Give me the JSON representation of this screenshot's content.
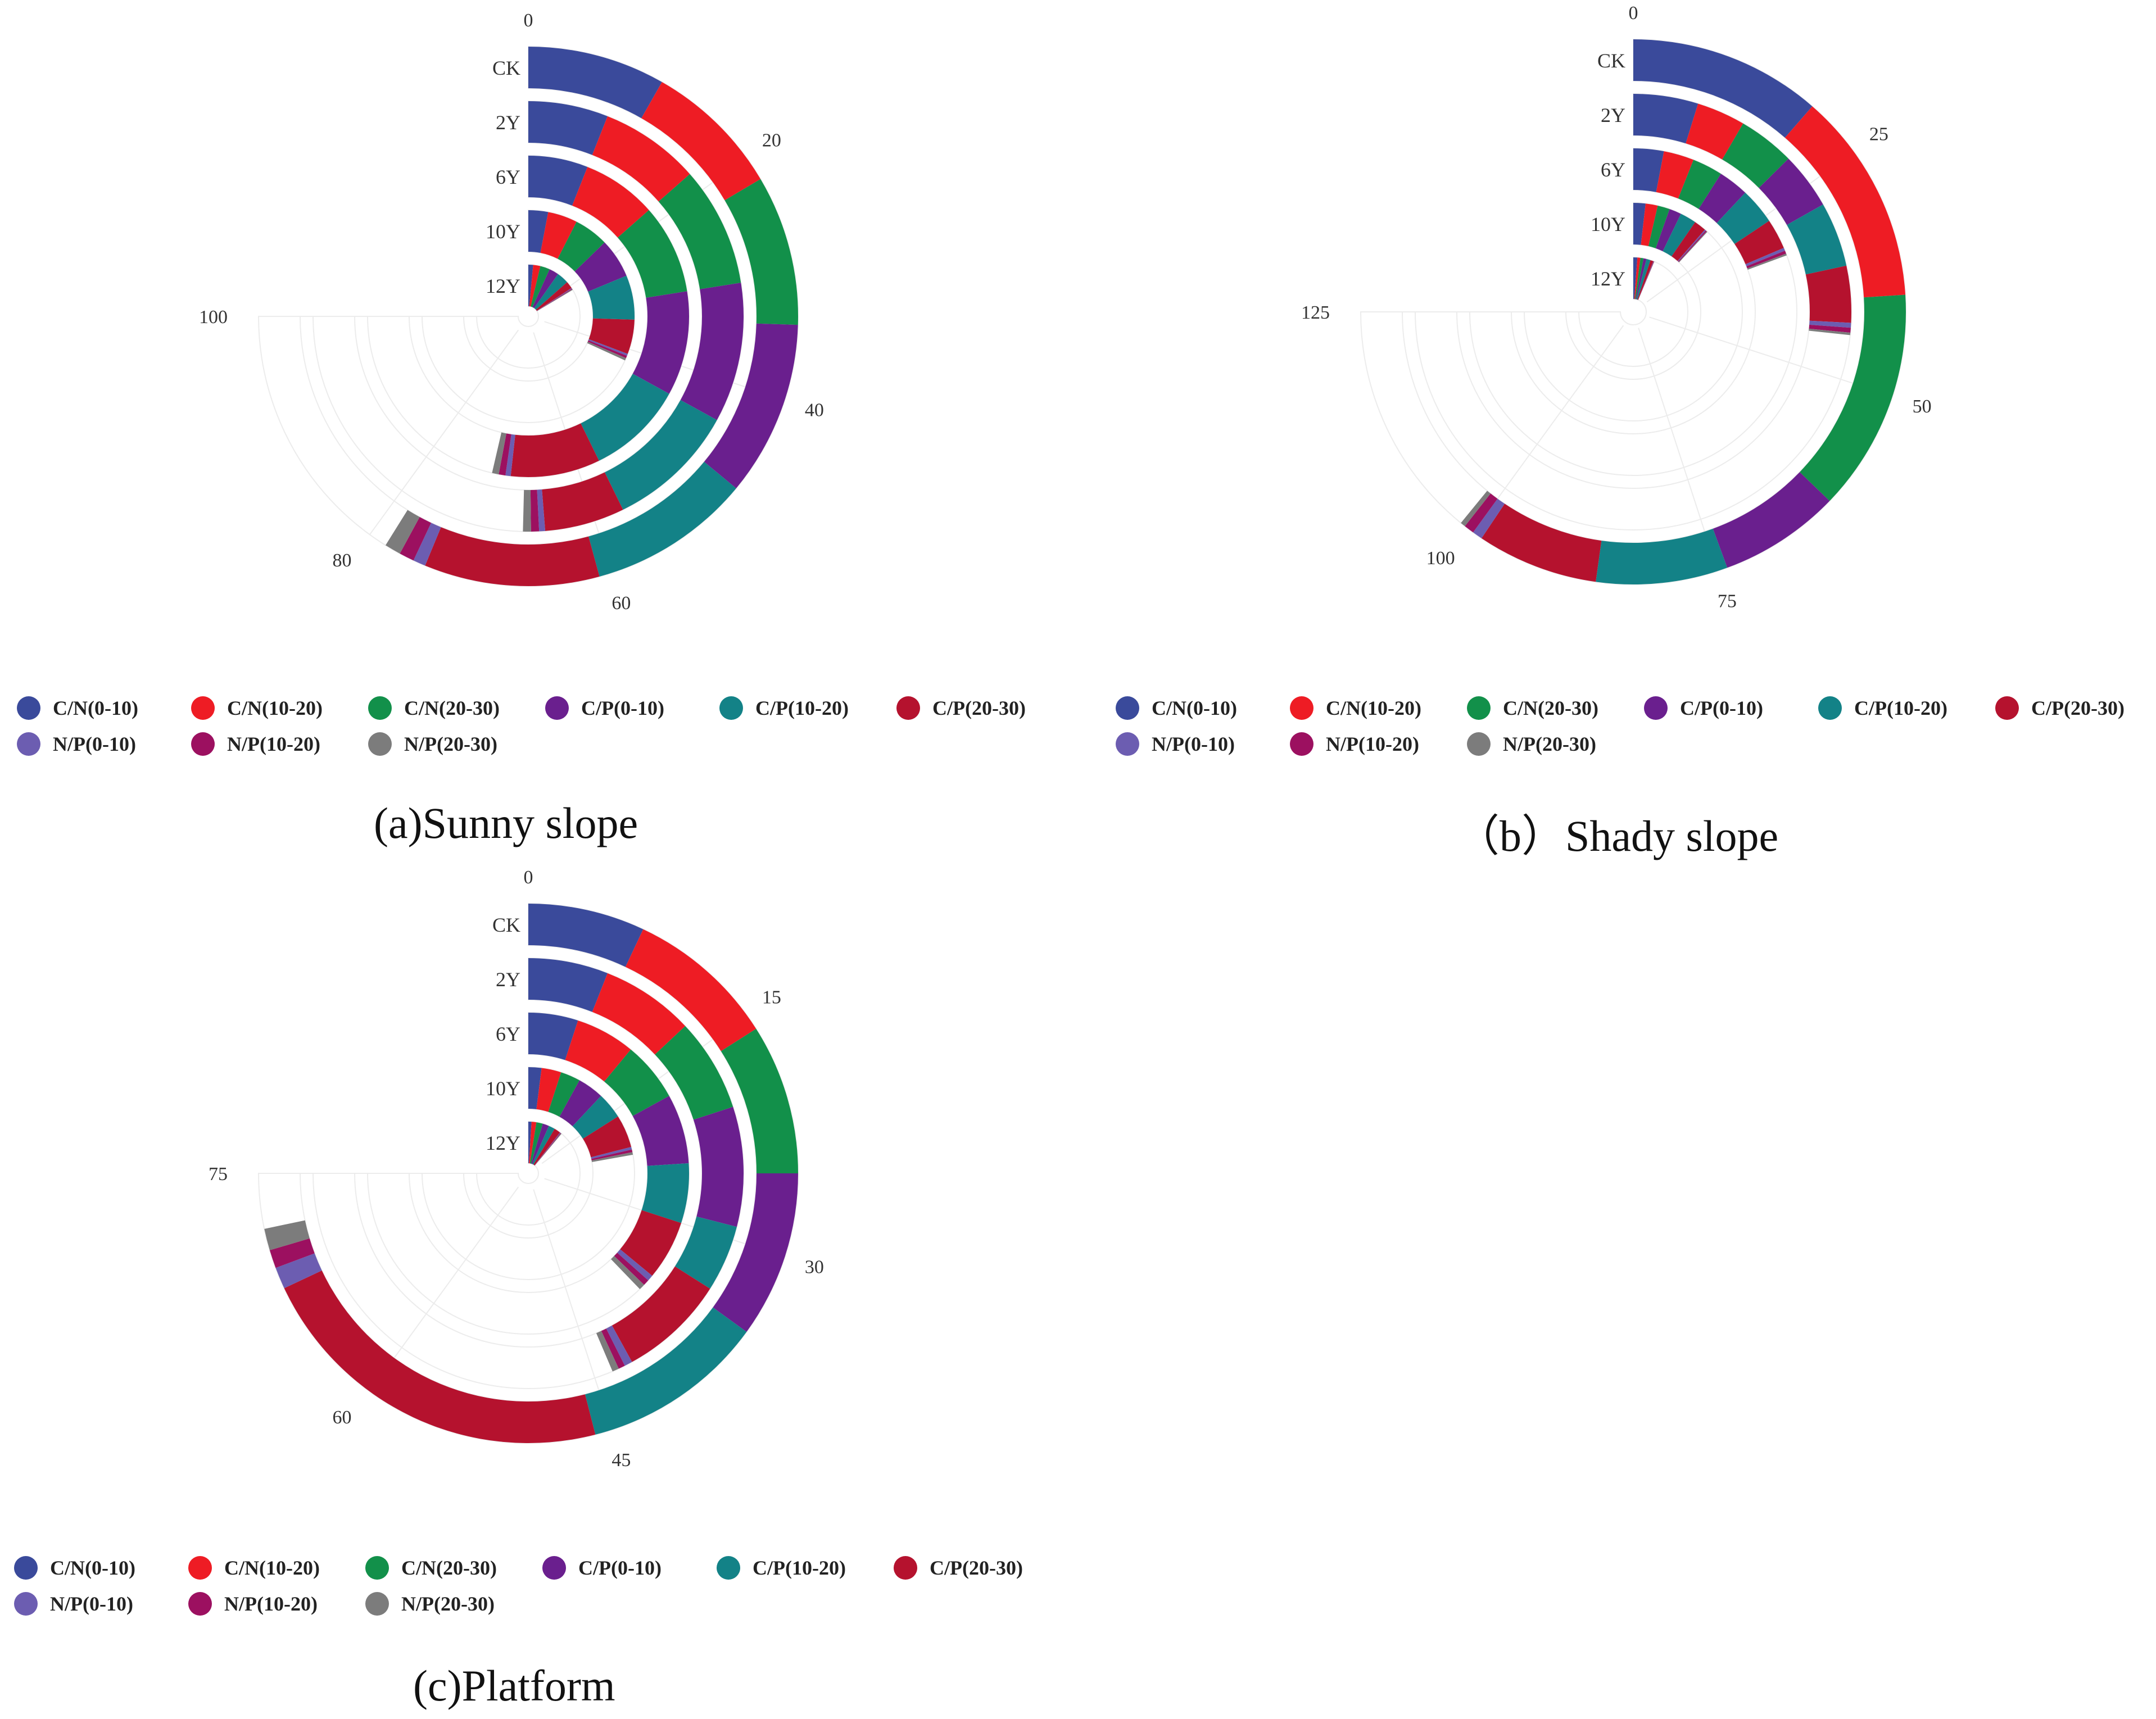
{
  "series_names": [
    "C/N(0-10)",
    "C/N(10-20)",
    "C/N(20-30)",
    "C/P(0-10)",
    "C/P(10-20)",
    "C/P(20-30)",
    "N/P(0-10)",
    "N/P(10-20)",
    "N/P(20-30)"
  ],
  "colors": [
    "#3a4a9b",
    "#ee1c24",
    "#12904a",
    "#6a1f8e",
    "#138287",
    "#b5122e",
    "#6c5db1",
    "#9c1060",
    "#7c7c7c"
  ],
  "chart_data": [
    {
      "type": "radial-stacked-bar",
      "panel": "a",
      "caption": "(a)Sunny slope",
      "categories": [
        "CK",
        "2Y",
        "6Y",
        "10Y",
        "12Y"
      ],
      "radial_axis_max": 100,
      "radial_ticks": [
        "0",
        "20",
        "40",
        "60",
        "80",
        "100"
      ],
      "series": [
        {
          "name": "C/N(0-10)",
          "values": [
            11,
            8,
            8,
            4,
            2
          ]
        },
        {
          "name": "C/N(10-20)",
          "values": [
            11,
            10,
            10,
            6,
            3
          ]
        },
        {
          "name": "C/N(20-30)",
          "values": [
            12,
            12,
            12,
            7,
            4
          ]
        },
        {
          "name": "C/P(0-10)",
          "values": [
            14,
            14,
            14,
            8,
            4
          ]
        },
        {
          "name": "C/P(10-20)",
          "values": [
            13,
            13,
            13,
            9,
            5
          ]
        },
        {
          "name": "C/P(20-30)",
          "values": [
            14,
            8,
            12,
            7,
            3
          ]
        },
        {
          "name": "N/P(0-10)",
          "values": [
            1,
            0.6,
            0.7,
            0.4,
            0.3
          ]
        },
        {
          "name": "N/P(10-20)",
          "values": [
            1.2,
            0.8,
            0.9,
            0.5,
            0.3
          ]
        },
        {
          "name": "N/P(20-30)",
          "values": [
            1.3,
            0.8,
            0.9,
            0.5,
            0.3
          ]
        }
      ]
    },
    {
      "type": "radial-stacked-bar",
      "panel": "b",
      "caption": "（b）Shady slope",
      "categories": [
        "CK",
        "2Y",
        "6Y",
        "10Y",
        "12Y"
      ],
      "radial_axis_max": 125,
      "radial_ticks": [
        "0",
        "25",
        "50",
        "75",
        "100",
        "125"
      ],
      "series": [
        {
          "name": "C/N(0-10)",
          "values": [
            19,
            8,
            5,
            3,
            2
          ]
        },
        {
          "name": "C/N(10-20)",
          "values": [
            21,
            6,
            5,
            3,
            1.5
          ]
        },
        {
          "name": "C/N(20-30)",
          "values": [
            22,
            7,
            5,
            3,
            1.5
          ]
        },
        {
          "name": "C/P(0-10)",
          "values": [
            12,
            7,
            5,
            3,
            1.5
          ]
        },
        {
          "name": "C/P(10-20)",
          "values": [
            13,
            8,
            6,
            4,
            2
          ]
        },
        {
          "name": "C/P(20-30)",
          "values": [
            12,
            7,
            5,
            3,
            1.5
          ]
        },
        {
          "name": "N/P(0-10)",
          "values": [
            1,
            0.6,
            0.5,
            0.3,
            0.2
          ]
        },
        {
          "name": "N/P(10-20)",
          "values": [
            1,
            0.6,
            0.5,
            0.3,
            0.2
          ]
        },
        {
          "name": "N/P(20-30)",
          "values": [
            0.5,
            0.3,
            0.3,
            0.2,
            0.1
          ]
        }
      ]
    },
    {
      "type": "radial-stacked-bar",
      "panel": "c",
      "caption": "(c)Platform",
      "categories": [
        "CK",
        "2Y",
        "6Y",
        "10Y",
        "12Y"
      ],
      "radial_axis_max": 75,
      "radial_ticks": [
        "0",
        "15",
        "30",
        "45",
        "60",
        "75"
      ],
      "series": [
        {
          "name": "C/N(0-10)",
          "values": [
            7,
            6,
            5,
            2,
            1
          ]
        },
        {
          "name": "C/N(10-20)",
          "values": [
            9,
            7,
            6,
            3,
            1.5
          ]
        },
        {
          "name": "C/N(20-30)",
          "values": [
            9,
            7,
            6,
            3,
            2
          ]
        },
        {
          "name": "C/P(0-10)",
          "values": [
            10,
            9,
            7,
            4,
            2
          ]
        },
        {
          "name": "C/P(10-20)",
          "values": [
            11,
            5,
            6,
            4,
            2
          ]
        },
        {
          "name": "C/P(20-30)",
          "values": [
            22,
            8,
            6,
            5,
            2
          ]
        },
        {
          "name": "N/P(0-10)",
          "values": [
            1.3,
            0.6,
            0.6,
            0.4,
            0.2
          ]
        },
        {
          "name": "N/P(10-20)",
          "values": [
            1.1,
            0.5,
            0.6,
            0.4,
            0.2
          ]
        },
        {
          "name": "N/P(20-30)",
          "values": [
            1.3,
            0.5,
            0.6,
            0.4,
            0.2
          ]
        }
      ]
    }
  ]
}
